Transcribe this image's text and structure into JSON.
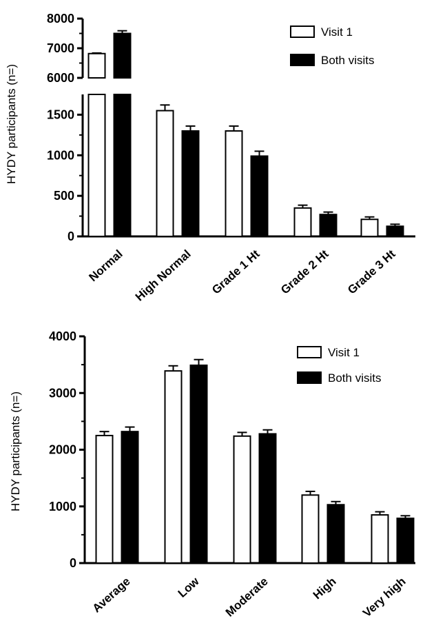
{
  "chart_data": [
    {
      "type": "bar",
      "ylabel": "HYDY participants (n=)",
      "categories": [
        "Normal",
        "High Normal",
        "Grade 1 Ht",
        "Grade 2 Ht",
        "Grade 3 Ht"
      ],
      "series": [
        {
          "name": "Visit 1",
          "values": [
            6820,
            1550,
            1300,
            350,
            210
          ],
          "errors": [
            20,
            70,
            60,
            35,
            30
          ],
          "color": "#ffffff"
        },
        {
          "name": "Both visits",
          "values": [
            7500,
            1300,
            990,
            270,
            125
          ],
          "errors": [
            90,
            60,
            60,
            30,
            25
          ],
          "color": "#000000"
        }
      ],
      "y_ticks": [
        0,
        500,
        1000,
        1500,
        6000,
        7000,
        8000
      ],
      "y_break": {
        "lower_max": 1750,
        "upper_min": 6000,
        "upper_max": 8000
      },
      "ylim": [
        0,
        8000
      ],
      "legend": "top-right",
      "grid": false
    },
    {
      "type": "bar",
      "ylabel": "HYDY participants (n=)",
      "categories": [
        "Average",
        "Low",
        "Moderate",
        "High",
        "Very high"
      ],
      "series": [
        {
          "name": "Visit 1",
          "values": [
            2250,
            3390,
            2240,
            1200,
            850
          ],
          "errors": [
            70,
            90,
            65,
            65,
            55
          ],
          "color": "#ffffff"
        },
        {
          "name": "Both visits",
          "values": [
            2320,
            3490,
            2280,
            1030,
            790
          ],
          "errors": [
            80,
            100,
            70,
            55,
            45
          ],
          "color": "#000000"
        }
      ],
      "y_ticks": [
        0,
        1000,
        2000,
        3000,
        4000
      ],
      "ylim": [
        0,
        4000
      ],
      "legend": "top-right",
      "grid": false
    }
  ]
}
